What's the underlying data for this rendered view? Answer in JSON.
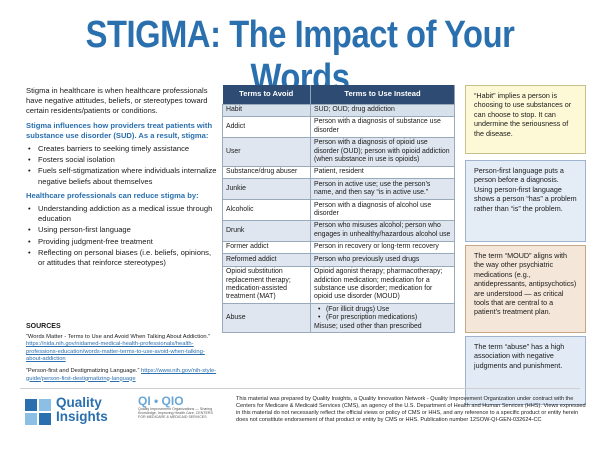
{
  "title": "STIGMA: The Impact of Your Words",
  "intro": {
    "paragraph": "Stigma in healthcare is when healthcare professionals have negative attitudes, beliefs, or stereotypes toward certain residents/patients or conditions.",
    "heading1": "Stigma influences how providers treat patients with substance use disorder (SUD). As a result, stigma:",
    "bullets1": [
      "Creates barriers to seeking timely assistance",
      "Fosters social isolation",
      "Fuels self-stigmatization where individuals internalize negative beliefs about themselves"
    ],
    "heading2": "Healthcare professionals can reduce stigma by:",
    "bullets2": [
      "Understanding addiction as a medical issue through education",
      "Using person-first language",
      "Providing judgment-free treatment",
      "Reflecting on personal biases (i.e. beliefs, opinions, or attitudes that reinforce stereotypes)"
    ]
  },
  "sources": {
    "heading": "SOURCES",
    "items": [
      {
        "text": "“Words Matter - Terms to Use and Avoid When Talking About Addiction.”",
        "link": "https://nida.nih.gov/nidamed-medical-health-professionals/health-professions-education/words-matter-terms-to-use-avoid-when-talking-about-addiction"
      },
      {
        "text": "“Person-first and Destigmatizing Language.”",
        "link": "https://www.nih.gov/nih-style-guide/person-first-destigmatizing-language"
      }
    ]
  },
  "table": {
    "header_avoid": "Terms to Avoid",
    "header_use": "Terms to Use Instead",
    "rows": [
      {
        "avoid": "Habit",
        "use": "SUD; OUD; drug addiction"
      },
      {
        "avoid": "Addict",
        "use": "Person with a diagnosis of substance use disorder"
      },
      {
        "avoid": "User",
        "use": "Person with a diagnosis of opioid use disorder (OUD); person with opioid addiction (when substance in use is opioids)"
      },
      {
        "avoid": "Substance/drug abuser",
        "use": "Patient, resident"
      },
      {
        "avoid": "Junkie",
        "use": "Person in active use; use the person’s name, and then say “is in active use.”"
      },
      {
        "avoid": "Alcoholic",
        "use": "Person with a diagnosis of alcohol use disorder"
      },
      {
        "avoid": "Drunk",
        "use": "Person who misuses alcohol; person who engages in unhealthy/hazardous alcohol use"
      },
      {
        "avoid": "Former addict",
        "use": "Person in recovery or long-term recovery"
      },
      {
        "avoid": "Reformed addict",
        "use": "Person who previously used drugs"
      },
      {
        "avoid": "Opioid substitution replacement therapy; medication-assisted treatment (MAT)",
        "use": "Opioid agonist therapy; pharmacotherapy; addiction medication; medication for a substance use disorder; medication for opioid use disorder (MOUD)"
      }
    ],
    "abuse": {
      "avoid": "Abuse",
      "bullet1": "(For illicit drugs) Use",
      "bullet2": "(For prescription medications)",
      "tail": "Misuse; used other than prescribed"
    }
  },
  "notes": {
    "note1": "“Habit” implies a person is choosing to use substances or can choose to stop. It can undermine the seriousness of the disease.",
    "note2": "Person-first language puts a person before a diagnosis. Using person-first language shows a person “has” a problem rather than “is” the problem.",
    "note3": "The term “MOUD” aligns with the way other psychiatric medications (e.g., antidepressants, antipsychotics) are understood — as critical tools that are central to a patient’s treatment plan.",
    "note4": "The term “abuse” has a high association with negative judgments and punishment."
  },
  "footer": {
    "logo_line1": "Quality",
    "logo_line2": "Insights",
    "qio_title": "QI • QIO",
    "qio_small": "Quality Improvement Organizations — Sharing Knowledge. Improving Health Care. CENTERS FOR MEDICARE & MEDICAID SERVICES",
    "disclaimer": "This material was prepared by Quality Insights, a Quality Innovation Network - Quality Improvement Organization under contract with the Centers for Medicare & Medicaid Services (CMS), an agency of the U.S. Department of Health and Human Services (HHS). Views expressed in this material do not necessarily reflect the official views or policy of CMS or HHS, and any reference to a specific product or entity herein does not constitute endorsement of that product or entity by CMS or HHS. Publication number 12SOW-QI-GEN-032624-CC"
  },
  "colors": {
    "title_blue": "#2a6fae",
    "table_header": "#2d4b73",
    "note_yellow": "#fdf8d6",
    "note_blue": "#e4ecf6",
    "note_tan": "#f4e6d8"
  }
}
